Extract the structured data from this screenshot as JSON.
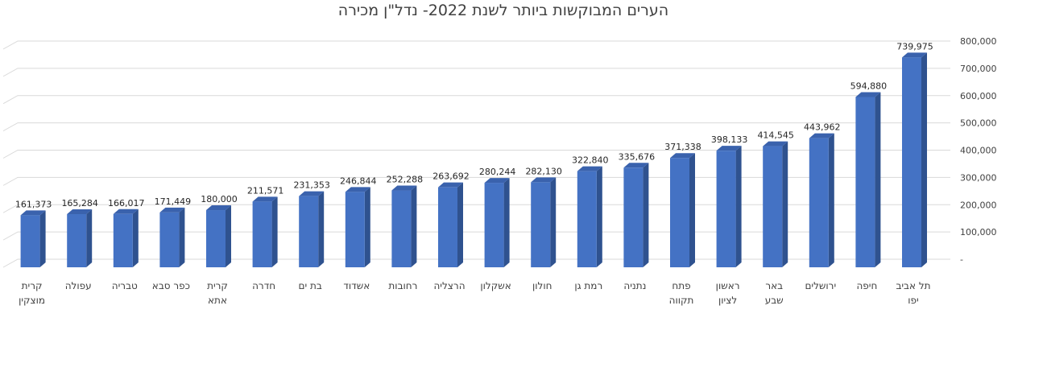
{
  "chart_data": {
    "type": "bar",
    "title": "הערים המבוקשות ביותר לשנת 2022- נדל\"ן מכירה",
    "categories": [
      "תל אביב\nיפו",
      "חיפה",
      "ירושלים",
      "באר\nשבע",
      "ראשון\nלציון",
      "פתח\nתקווה",
      "נתניה",
      "רמת גן",
      "חולון",
      "אשקלון",
      "הרצליה",
      "רחובות",
      "אשדוד",
      "בת ים",
      "חדרה",
      "קרית\nאתא",
      "כפר סבא",
      "טבריה",
      "עפולה",
      "קרית\nמוצקין"
    ],
    "values": [
      739975,
      594880,
      443962,
      414545,
      398133,
      371338,
      335676,
      322840,
      282130,
      280244,
      263692,
      252288,
      246844,
      231353,
      211571,
      180000,
      171449,
      166017,
      165284,
      161373
    ],
    "data_labels": [
      "739,975",
      "594,880",
      "443,962",
      "414,545",
      "398,133",
      "371,338",
      "335,676",
      "322,840",
      "282,130",
      "280,244",
      "263,692",
      "252,288",
      "246,844",
      "231,353",
      "211,571",
      "180,000",
      "171,449",
      "166,017",
      "165,284",
      "161,373"
    ],
    "ylim": [
      0,
      800000
    ],
    "yticks": [
      "-",
      "100,000",
      "200,000",
      "300,000",
      "400,000",
      "500,000",
      "600,000",
      "700,000",
      "800,000"
    ],
    "xlabel": "",
    "ylabel": "",
    "grid": true,
    "legend": "none",
    "orientation": "right-to-left",
    "colors": {
      "bar_front": "#4472c4",
      "bar_side": "#2f528f",
      "bar_top": "#3a62ad",
      "grid": "#d9d9d9"
    }
  }
}
